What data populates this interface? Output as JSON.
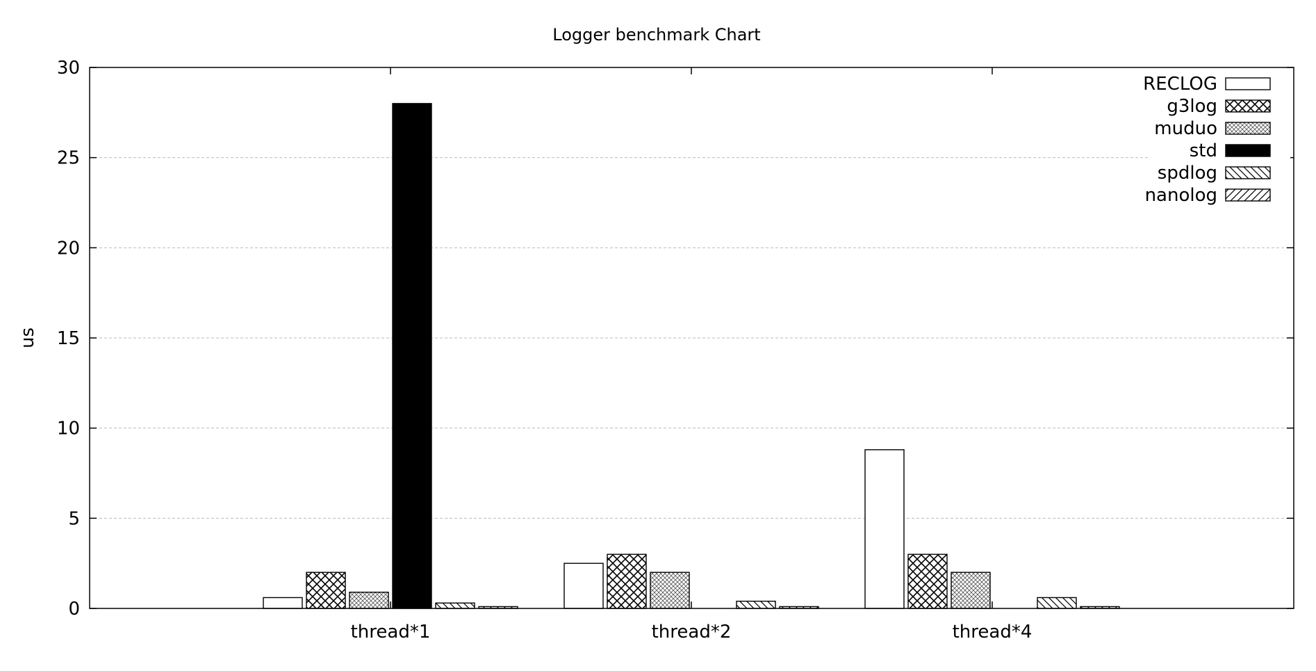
{
  "chart_data": {
    "type": "bar",
    "title": "Logger benchmark Chart",
    "xlabel": "",
    "ylabel": "us",
    "ylim": [
      0,
      30
    ],
    "yticks": [
      0,
      5,
      10,
      15,
      20,
      25,
      30
    ],
    "grid": true,
    "legend_position": "top-right",
    "categories": [
      "thread*1",
      "thread*2",
      "thread*4"
    ],
    "series": [
      {
        "name": "RECLOG",
        "pattern": "none",
        "values": [
          0.6,
          2.5,
          8.8
        ]
      },
      {
        "name": "g3log",
        "pattern": "crosshatch-dense",
        "values": [
          2.0,
          3.0,
          3.0
        ]
      },
      {
        "name": "muduo",
        "pattern": "crosshatch-fine",
        "values": [
          0.9,
          2.0,
          2.0
        ]
      },
      {
        "name": "std",
        "pattern": "solid",
        "values": [
          28.0,
          0,
          0
        ]
      },
      {
        "name": "spdlog",
        "pattern": "hatch-back",
        "values": [
          0.3,
          0.4,
          0.6
        ]
      },
      {
        "name": "nanolog",
        "pattern": "hatch-forward",
        "values": [
          0.1,
          0.1,
          0.1
        ]
      }
    ],
    "colors": {
      "stroke": "#000000",
      "fill": "#ffffff",
      "grid": "#bbbbbb"
    }
  }
}
